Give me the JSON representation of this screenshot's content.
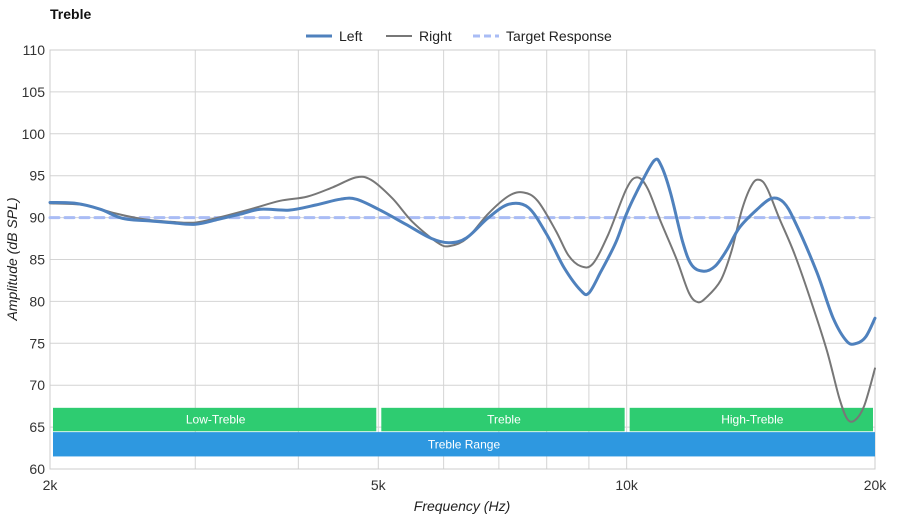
{
  "chart_data": {
    "type": "line",
    "title": "Treble",
    "xlabel": "Frequency (Hz)",
    "ylabel": "Amplitude (dB SPL)",
    "x_scale": "log",
    "xlim": [
      2000,
      20000
    ],
    "ylim": [
      60,
      110
    ],
    "x_ticks": [
      {
        "value": 2000,
        "label": "2k"
      },
      {
        "value": 5000,
        "label": "5k"
      },
      {
        "value": 10000,
        "label": "10k"
      },
      {
        "value": 20000,
        "label": "20k"
      }
    ],
    "x_gridlines": [
      3000,
      4000,
      5000,
      6000,
      7000,
      8000,
      9000,
      10000
    ],
    "y_ticks": [
      60,
      65,
      70,
      75,
      80,
      85,
      90,
      95,
      100,
      105,
      110
    ],
    "grid": true,
    "legend_position": "top-center",
    "series": [
      {
        "name": "Left",
        "color": "#4f81bd",
        "style": "solid-thick",
        "points": [
          [
            2000,
            91.8
          ],
          [
            2150,
            91.7
          ],
          [
            2300,
            91.0
          ],
          [
            2450,
            89.9
          ],
          [
            2650,
            89.6
          ],
          [
            2800,
            89.4
          ],
          [
            3000,
            89.2
          ],
          [
            3200,
            89.8
          ],
          [
            3400,
            90.4
          ],
          [
            3600,
            91.0
          ],
          [
            3900,
            90.9
          ],
          [
            4200,
            91.5
          ],
          [
            4500,
            92.2
          ],
          [
            4700,
            92.2
          ],
          [
            5000,
            91.0
          ],
          [
            5400,
            89.2
          ],
          [
            5800,
            87.5
          ],
          [
            6100,
            87.0
          ],
          [
            6400,
            87.6
          ],
          [
            6800,
            90.0
          ],
          [
            7200,
            91.6
          ],
          [
            7600,
            91.2
          ],
          [
            8000,
            88.0
          ],
          [
            8400,
            84.0
          ],
          [
            8800,
            81.3
          ],
          [
            9000,
            81.0
          ],
          [
            9300,
            83.5
          ],
          [
            9700,
            87.0
          ],
          [
            10000,
            90.5
          ],
          [
            10400,
            94.0
          ],
          [
            10800,
            96.8
          ],
          [
            11000,
            96.3
          ],
          [
            11300,
            93.0
          ],
          [
            11700,
            87.0
          ],
          [
            12000,
            84.3
          ],
          [
            12400,
            83.6
          ],
          [
            12800,
            84.2
          ],
          [
            13200,
            86.0
          ],
          [
            13700,
            88.8
          ],
          [
            14400,
            91.0
          ],
          [
            15000,
            92.3
          ],
          [
            15500,
            91.8
          ],
          [
            16000,
            89.5
          ],
          [
            17000,
            83.5
          ],
          [
            17800,
            78.0
          ],
          [
            18500,
            75.2
          ],
          [
            19000,
            75.0
          ],
          [
            19500,
            75.8
          ],
          [
            20000,
            78.0
          ]
        ]
      },
      {
        "name": "Right",
        "color": "#777777",
        "style": "solid-thin",
        "points": [
          [
            2000,
            91.7
          ],
          [
            2200,
            91.5
          ],
          [
            2400,
            90.5
          ],
          [
            2600,
            89.8
          ],
          [
            2800,
            89.5
          ],
          [
            3000,
            89.4
          ],
          [
            3200,
            90.0
          ],
          [
            3500,
            91.0
          ],
          [
            3800,
            92.0
          ],
          [
            4100,
            92.5
          ],
          [
            4400,
            93.6
          ],
          [
            4700,
            94.8
          ],
          [
            4900,
            94.5
          ],
          [
            5200,
            92.3
          ],
          [
            5500,
            89.5
          ],
          [
            5900,
            87.0
          ],
          [
            6100,
            86.6
          ],
          [
            6400,
            87.5
          ],
          [
            6800,
            90.5
          ],
          [
            7200,
            92.6
          ],
          [
            7500,
            93.0
          ],
          [
            7800,
            92.0
          ],
          [
            8200,
            88.5
          ],
          [
            8500,
            85.5
          ],
          [
            8800,
            84.2
          ],
          [
            9100,
            84.5
          ],
          [
            9500,
            88.0
          ],
          [
            10000,
            93.5
          ],
          [
            10300,
            94.8
          ],
          [
            10600,
            93.5
          ],
          [
            11000,
            89.5
          ],
          [
            11500,
            85.0
          ],
          [
            11900,
            81.0
          ],
          [
            12200,
            79.9
          ],
          [
            12500,
            80.5
          ],
          [
            13000,
            82.5
          ],
          [
            13400,
            86.0
          ],
          [
            13800,
            91.0
          ],
          [
            14200,
            94.0
          ],
          [
            14500,
            94.5
          ],
          [
            14800,
            93.5
          ],
          [
            15300,
            90.0
          ],
          [
            16000,
            85.5
          ],
          [
            16800,
            79.5
          ],
          [
            17500,
            74.0
          ],
          [
            18100,
            68.5
          ],
          [
            18500,
            66.0
          ],
          [
            18900,
            65.8
          ],
          [
            19400,
            67.5
          ],
          [
            20000,
            72.0
          ]
        ]
      },
      {
        "name": "Target Response",
        "color": "#a9bcf5",
        "style": "dashed",
        "points": [
          [
            2000,
            90.0
          ],
          [
            20000,
            90.0
          ]
        ]
      }
    ],
    "bands": [
      {
        "label": "Low-Treble",
        "start": 2000,
        "end": 5000,
        "row": 1,
        "color": "#2ecc71"
      },
      {
        "label": "Treble",
        "start": 5000,
        "end": 10000,
        "row": 1,
        "color": "#2ecc71"
      },
      {
        "label": "High-Treble",
        "start": 10000,
        "end": 20000,
        "row": 1,
        "color": "#2ecc71"
      },
      {
        "label": "Treble Range",
        "start": 2000,
        "end": 20000,
        "row": 2,
        "color": "#2e98e0"
      }
    ]
  }
}
